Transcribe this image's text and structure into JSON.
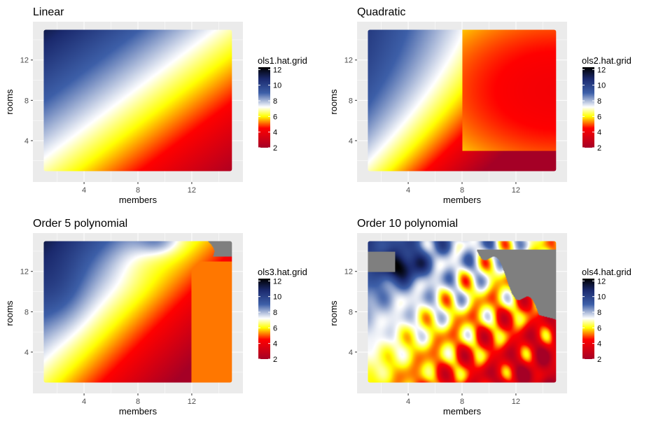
{
  "chart_data": [
    {
      "type": "heatmap",
      "title": "Linear",
      "xlabel": "members",
      "ylabel": "rooms",
      "x_ticks": [
        4,
        8,
        12
      ],
      "y_ticks": [
        4,
        8,
        12
      ],
      "xlim": [
        0.2,
        15.8
      ],
      "ylim": [
        -0.1,
        15.8
      ],
      "data_range": {
        "x": [
          1,
          15
        ],
        "y": [
          1,
          15
        ]
      },
      "grid": true,
      "legend": {
        "title": "ols1.hat.grid",
        "ticks": [
          2,
          4,
          6,
          8,
          10,
          12
        ],
        "range": [
          2,
          12.3
        ],
        "placement": "right"
      },
      "surface": "linear"
    },
    {
      "type": "heatmap",
      "title": "Quadratic",
      "xlabel": "members",
      "ylabel": "rooms",
      "x_ticks": [
        4,
        8,
        12
      ],
      "y_ticks": [
        4,
        8,
        12
      ],
      "xlim": [
        0.2,
        15.8
      ],
      "ylim": [
        -0.1,
        15.8
      ],
      "data_range": {
        "x": [
          1,
          15
        ],
        "y": [
          1,
          15
        ]
      },
      "grid": true,
      "legend": {
        "title": "ols2.hat.grid",
        "ticks": [
          2,
          4,
          6,
          8,
          10,
          12
        ],
        "range": [
          2,
          12.3
        ],
        "placement": "right"
      },
      "surface": "quadratic"
    },
    {
      "type": "heatmap",
      "title": "Order 5 polynomial",
      "xlabel": "members",
      "ylabel": "rooms",
      "x_ticks": [
        4,
        8,
        12
      ],
      "y_ticks": [
        4,
        8,
        12
      ],
      "xlim": [
        0.2,
        15.8
      ],
      "ylim": [
        -0.1,
        15.8
      ],
      "data_range": {
        "x": [
          1,
          15
        ],
        "y": [
          1,
          15
        ]
      },
      "grid": true,
      "legend": {
        "title": "ols3.hat.grid",
        "ticks": [
          2,
          4,
          6,
          8,
          10,
          12
        ],
        "range": [
          2,
          12.3
        ],
        "placement": "right"
      },
      "surface": "poly5"
    },
    {
      "type": "heatmap",
      "title": "Order 10 polynomial",
      "xlabel": "members",
      "ylabel": "rooms",
      "x_ticks": [
        4,
        8,
        12
      ],
      "y_ticks": [
        4,
        8,
        12
      ],
      "xlim": [
        0.2,
        15.8
      ],
      "ylim": [
        -0.1,
        15.8
      ],
      "data_range": {
        "x": [
          1,
          15
        ],
        "y": [
          1,
          15
        ]
      },
      "grid": true,
      "legend": {
        "title": "ols4.hat.grid",
        "ticks": [
          2,
          4,
          6,
          8,
          10,
          12
        ],
        "range": [
          2,
          12.3
        ],
        "placement": "right"
      },
      "surface": "poly10"
    }
  ],
  "colors": {
    "panel_background": "#ebebeb",
    "gridline": "#ffffff",
    "na_value": "#7f7f7f",
    "scale": [
      "#a50026",
      "#ff0000",
      "#ffff00",
      "#ffffff",
      "#3d5fa8",
      "#1b2a6e",
      "#000000"
    ]
  }
}
